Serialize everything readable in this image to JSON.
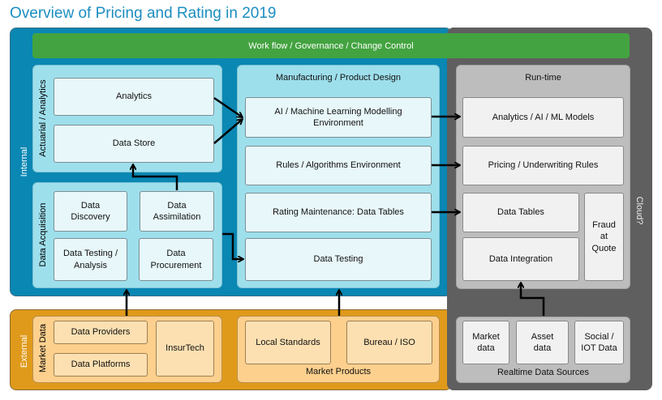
{
  "title": "Overview of Pricing and Rating in 2019",
  "workflow": "Work flow / Governance  / Change Control",
  "zones": {
    "internal": "Internal",
    "external": "External",
    "cloud": "Cloud?"
  },
  "actuarial": {
    "label": "Actuarial / Analytics",
    "analytics": "Analytics",
    "data_store": "Data Store"
  },
  "acquisition": {
    "label": "Data Acquisition",
    "discovery": "Data Discovery",
    "assimilation": "Data Assimilation",
    "testing": "Data Testing / Analysis",
    "procurement": "Data Procurement"
  },
  "manufacturing": {
    "title": "Manufacturing  / Product Design",
    "ai": "AI / Machine Learning Modelling Environment",
    "rules": "Rules / Algorithms Environment",
    "rating": "Rating Maintenance: Data Tables",
    "testing": "Data Testing"
  },
  "runtime": {
    "title": "Run-time",
    "analytics": "Analytics / AI / ML Models",
    "pricing": "Pricing / Underwriting Rules",
    "tables": "Data Tables",
    "integration": "Data Integration",
    "fraud": "Fraud at Quote"
  },
  "market_data": {
    "label": "Market Data",
    "providers": "Data Providers",
    "platforms": "Data Platforms",
    "insurtech": "InsurTech"
  },
  "market_products": {
    "title": "Market Products",
    "local": "Local Standards",
    "bureau": "Bureau / ISO"
  },
  "realtime": {
    "title": "Realtime Data Sources",
    "market": "Market data",
    "asset": "Asset data",
    "social": "Social / IOT Data"
  }
}
